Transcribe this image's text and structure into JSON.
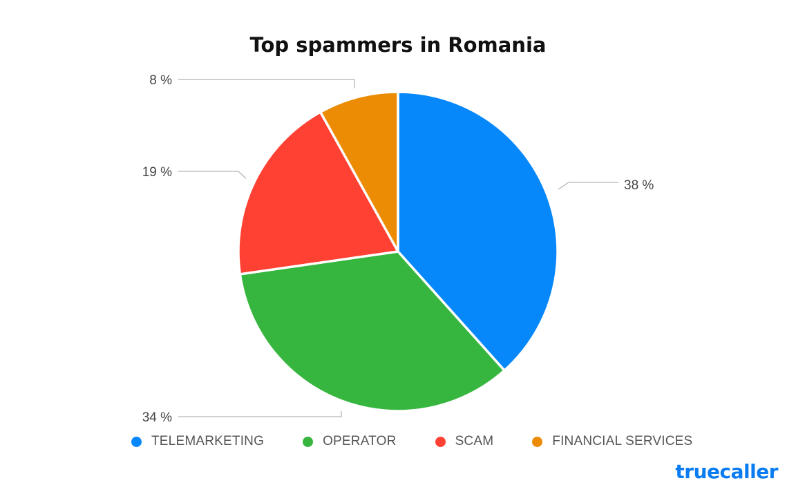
{
  "chart_data": {
    "type": "pie",
    "title": "Top spammers in Romania",
    "series": [
      {
        "name": "TELEMARKETING",
        "value": 38,
        "label": "38 %",
        "color": "#0687fa"
      },
      {
        "name": "OPERATOR",
        "value": 34,
        "label": "34 %",
        "color": "#36b63f"
      },
      {
        "name": "SCAM",
        "value": 19,
        "label": "19 %",
        "color": "#ff4133"
      },
      {
        "name": "FINANCIAL SERVICES",
        "value": 8,
        "label": "8 %",
        "color": "#ec8c05"
      }
    ],
    "legend_position": "bottom"
  },
  "brand": {
    "logo_text": "truecaller",
    "color": "#0a7cf2"
  }
}
